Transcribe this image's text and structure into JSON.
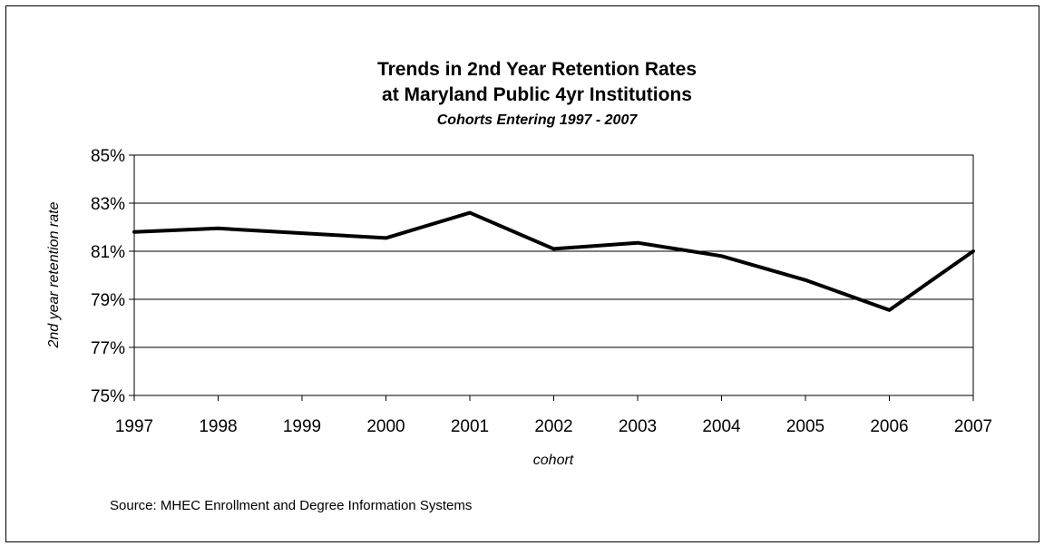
{
  "chart_data": {
    "type": "line",
    "title": "Trends in 2nd Year Retention Rates",
    "title_line2": "at Maryland Public 4yr Institutions",
    "subtitle": "Cohorts Entering 1997 - 2007",
    "xlabel": "cohort",
    "ylabel": "2nd year retention rate",
    "categories": [
      "1997",
      "1998",
      "1999",
      "2000",
      "2001",
      "2002",
      "2003",
      "2004",
      "2005",
      "2006",
      "2007"
    ],
    "series": [
      {
        "values": [
          81.8,
          81.95,
          81.75,
          81.55,
          82.6,
          81.1,
          81.35,
          80.8,
          79.8,
          78.55,
          81.0
        ]
      }
    ],
    "ylim": [
      75,
      85
    ],
    "yticks": [
      75,
      77,
      79,
      81,
      83,
      85
    ],
    "ytick_labels": [
      "75%",
      "77%",
      "79%",
      "81%",
      "83%",
      "85%"
    ],
    "grid": true,
    "legend": "none",
    "line_color": "#000000",
    "source": "Source: MHEC Enrollment and Degree Information Systems"
  }
}
